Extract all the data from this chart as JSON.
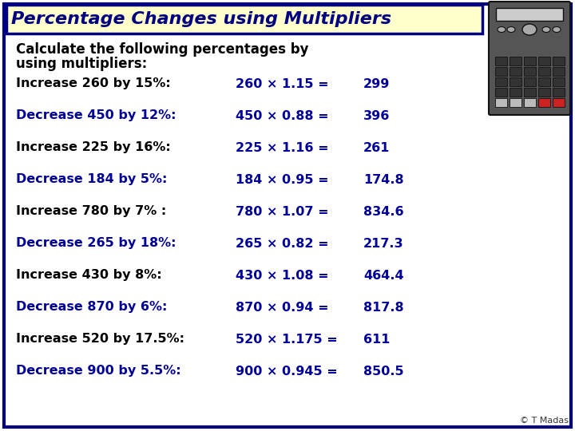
{
  "title": "Percentage Changes using Multipliers",
  "subtitle_line1": "Calculate the following percentages by",
  "subtitle_line2": "using multipliers:",
  "bg_color": "#ffffff",
  "title_bg": "#ffffcc",
  "title_border": "#000080",
  "title_text_color": "#000080",
  "rows": [
    {
      "label": "Increase 260 by 15%:",
      "calc": "260 × 1.15 =",
      "result": "299",
      "increase": true
    },
    {
      "label": "Decrease 450 by 12%:",
      "calc": "450 × 0.88 =",
      "result": "396",
      "increase": false
    },
    {
      "label": "Increase 225 by 16%:",
      "calc": "225 × 1.16 =",
      "result": "261",
      "increase": true
    },
    {
      "label": "Decrease 184 by 5%:",
      "calc": "184 × 0.95 =",
      "result": "174.8",
      "increase": false
    },
    {
      "label": "Increase 780 by 7% :",
      "calc": "780 × 1.07 =",
      "result": "834.6",
      "increase": true
    },
    {
      "label": "Decrease 265 by 18%:",
      "calc": "265 × 0.82 =",
      "result": "217.3",
      "increase": false
    },
    {
      "label": "Increase 430 by 8%:",
      "calc": "430 × 1.08 =",
      "result": "464.4",
      "increase": true
    },
    {
      "label": "Decrease 870 by 6%:",
      "calc": "870 × 0.94 =",
      "result": "817.8",
      "increase": false
    },
    {
      "label": "Increase 520 by 17.5%:",
      "calc": "520 × 1.175 =",
      "result": "611",
      "increase": true
    },
    {
      "label": "Decrease 900 by 5.5%:",
      "calc": "900 × 0.945 =",
      "result": "850.5",
      "increase": false
    }
  ],
  "increase_color": "#000000",
  "decrease_color": "#000099",
  "calc_color": "#000099",
  "result_color": "#000099",
  "footer": "© T Madas",
  "outer_border_color": "#000080",
  "outer_bg_color": "#ffffff",
  "calc_dark": "#222222",
  "calc_body": "#555555",
  "calc_screen": "#cccccc",
  "calc_btn_dark": "#222222",
  "calc_btn_light": "#999999",
  "calc_btn_red": "#cc2222",
  "calc_btn_white": "#cccccc"
}
